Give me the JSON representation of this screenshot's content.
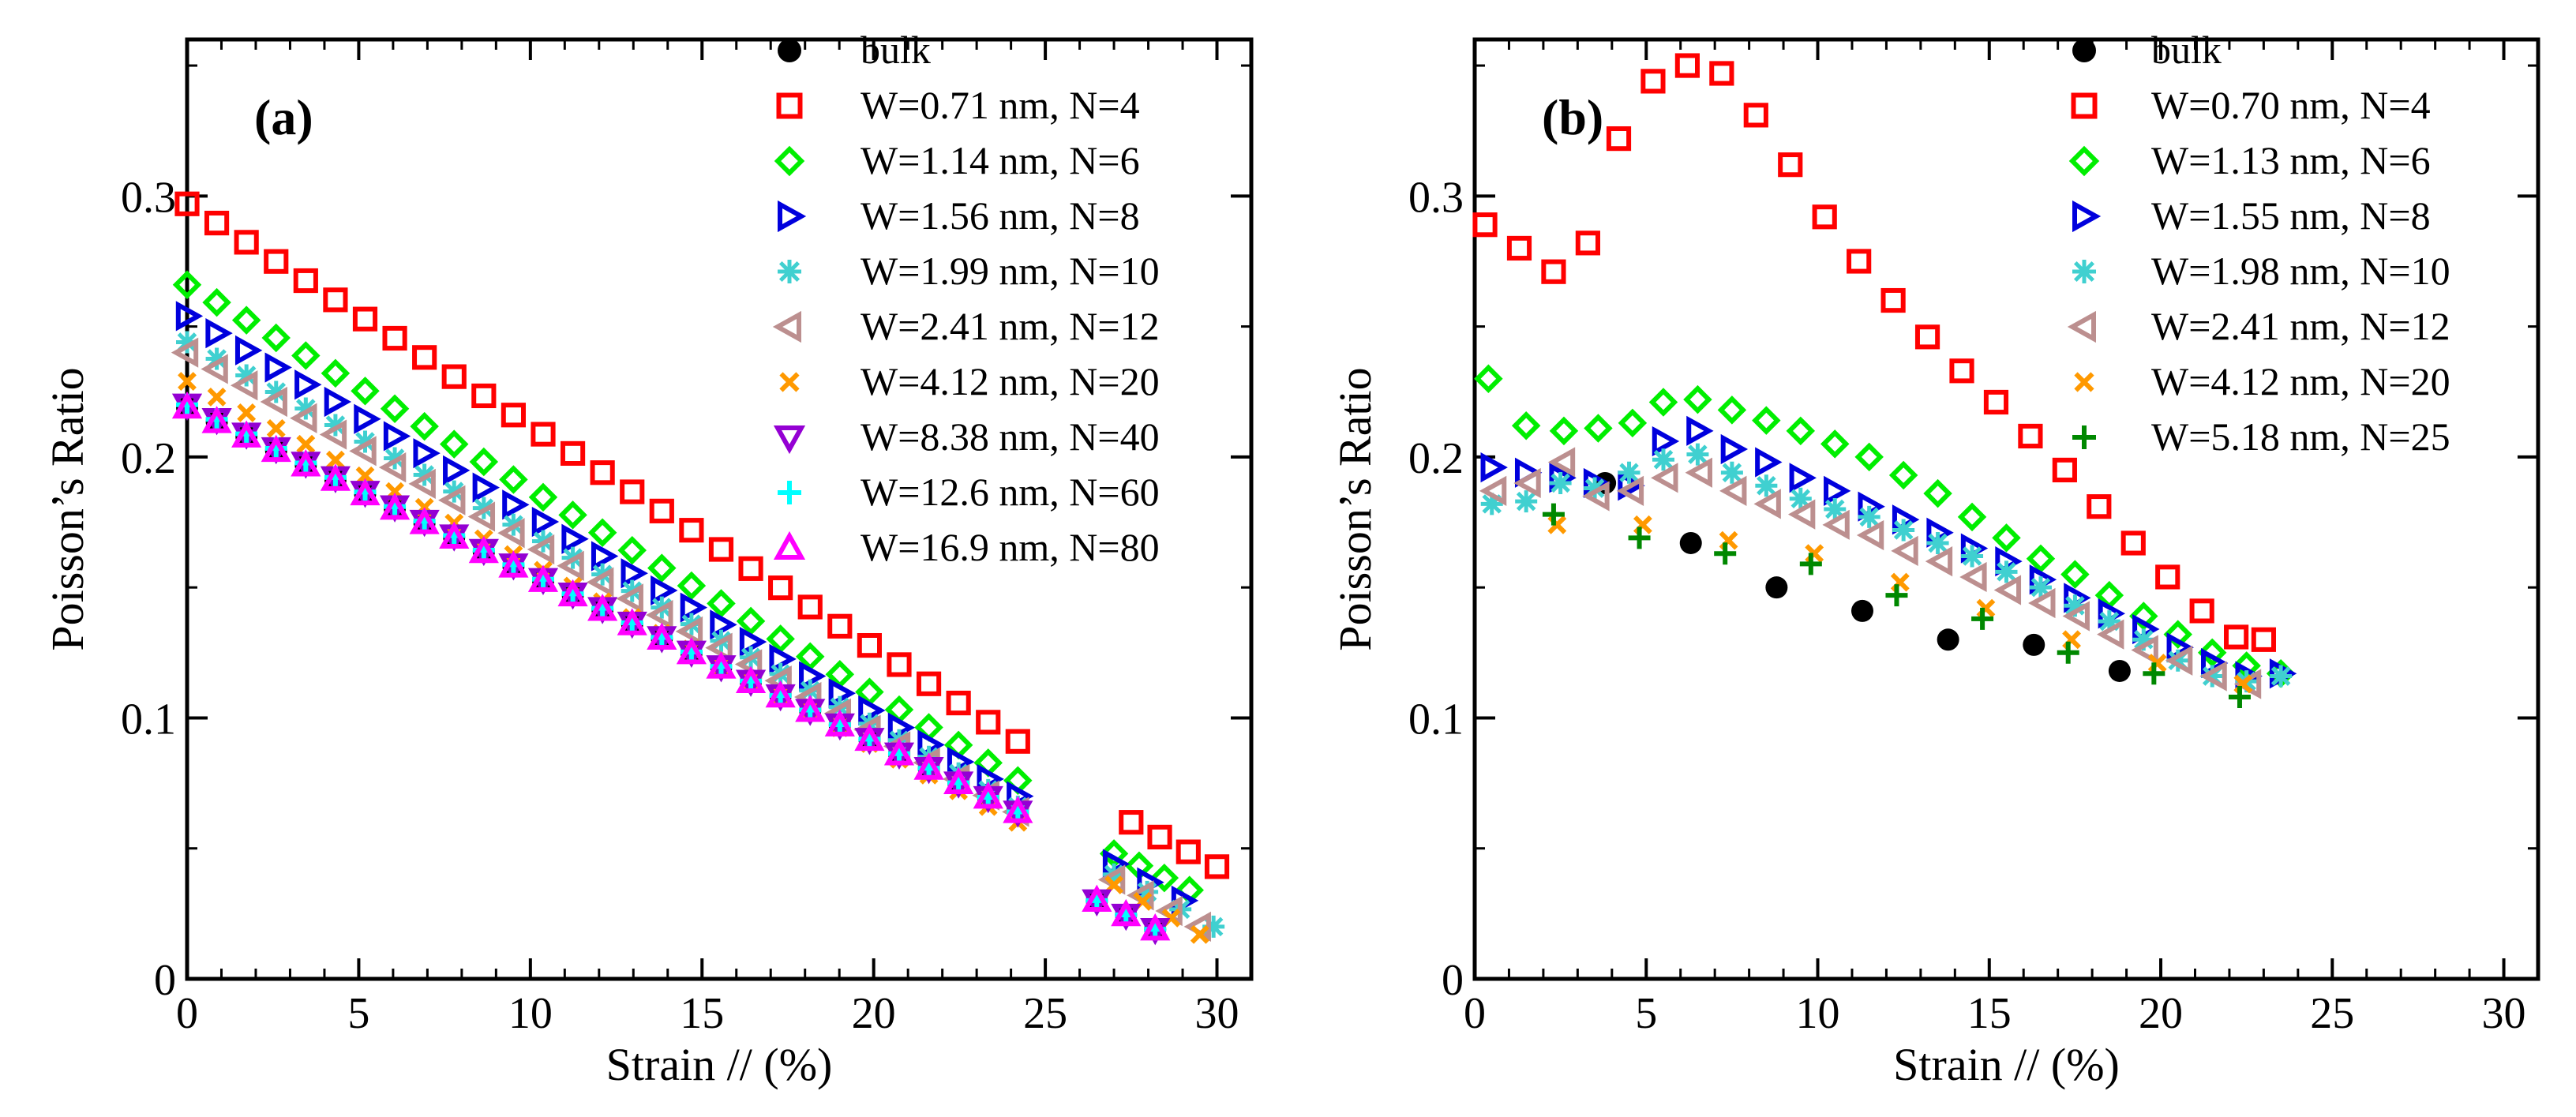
{
  "chart_data": [
    {
      "type": "scatter",
      "panel_label": "(a)",
      "xlabel": "Strain //  (%)",
      "ylabel": "Poisson’s Ratio",
      "xlim": [
        0,
        31
      ],
      "ylim": [
        0,
        0.36
      ],
      "xticks": [
        0,
        5,
        10,
        15,
        20,
        25,
        30
      ],
      "yticks": [
        0,
        0.1,
        0.2,
        0.3
      ],
      "xtick_labels": [
        "0",
        "5",
        "10",
        "15",
        "20",
        "25",
        "30"
      ],
      "ytick_labels": [
        "0",
        "0.1",
        "0.2",
        "0.3"
      ],
      "legend_position": "top-right",
      "series": [
        {
          "name": "bulk",
          "marker": "circle-filled",
          "color": "#000000",
          "segments": [
            [
              0,
              24.2,
              0.219,
              0.064
            ],
            [
              26.5,
              28.2,
              0.03,
              0.019
            ]
          ]
        },
        {
          "name": "W=0.71 nm, N=4",
          "marker": "square",
          "color": "#ff0000",
          "segments": [
            [
              0,
              24.2,
              0.297,
              0.091
            ],
            [
              27.5,
              30.0,
              0.06,
              0.043
            ]
          ]
        },
        {
          "name": "W=1.14 nm, N=6",
          "marker": "diamond",
          "color": "#00ee00",
          "segments": [
            [
              0,
              24.2,
              0.266,
              0.076
            ],
            [
              27,
              29.2,
              0.048,
              0.034
            ]
          ]
        },
        {
          "name": "W=1.56 nm, N=8",
          "marker": "triangle-right",
          "color": "#0000dd",
          "segments": [
            [
              0,
              24.2,
              0.254,
              0.07
            ],
            [
              27,
              29.0,
              0.044,
              0.03
            ]
          ]
        },
        {
          "name": "W=1.99 nm, N=10",
          "marker": "asterisk",
          "color": "#40d0d0",
          "segments": [
            [
              0,
              24.2,
              0.244,
              0.066
            ],
            [
              27,
              29.9,
              0.04,
              0.02
            ]
          ]
        },
        {
          "name": "W=2.41 nm, N=12",
          "marker": "triangle-left",
          "color": "#bc8f8f",
          "segments": [
            [
              0,
              24.2,
              0.24,
              0.064
            ],
            [
              27,
              29.5,
              0.038,
              0.02
            ]
          ]
        },
        {
          "name": "W=4.12 nm, N=20",
          "marker": "cross",
          "color": "#ff9900",
          "segments": [
            [
              0,
              24.2,
              0.229,
              0.06
            ],
            [
              27,
              29.5,
              0.036,
              0.017
            ]
          ]
        },
        {
          "name": "W=8.38 nm, N=40",
          "marker": "triangle-down",
          "color": "#9400d3",
          "segments": [
            [
              0,
              24.2,
              0.22,
              0.064
            ],
            [
              26.5,
              28.2,
              0.03,
              0.019
            ]
          ]
        },
        {
          "name": "W=12.6 nm, N=60",
          "marker": "plus",
          "color": "#00ffff",
          "segments": [
            [
              0,
              24.2,
              0.22,
              0.064
            ],
            [
              26.5,
              28.2,
              0.03,
              0.019
            ]
          ]
        },
        {
          "name": "W=16.9 nm, N=80",
          "marker": "triangle-up",
          "color": "#ff00ff",
          "segments": [
            [
              0,
              24.2,
              0.219,
              0.064
            ],
            [
              26.5,
              28.2,
              0.03,
              0.019
            ]
          ]
        }
      ]
    },
    {
      "type": "scatter",
      "panel_label": "(b)",
      "xlabel": "Strain //  (%)",
      "ylabel": "Poisson’s Ratio",
      "xlim": [
        0,
        31
      ],
      "ylim": [
        0,
        0.36
      ],
      "xticks": [
        0,
        5,
        10,
        15,
        20,
        25,
        30
      ],
      "yticks": [
        0,
        0.1,
        0.2,
        0.3
      ],
      "xtick_labels": [
        "0",
        "5",
        "10",
        "15",
        "20",
        "25",
        "30"
      ],
      "ytick_labels": [
        "0",
        "0.1",
        "0.2",
        "0.3"
      ],
      "legend_position": "top-right",
      "series": [
        {
          "name": "bulk",
          "marker": "circle-filled",
          "color": "#000000",
          "points": [
            [
              3.8,
              0.19
            ],
            [
              6.3,
              0.167
            ],
            [
              8.8,
              0.15
            ],
            [
              11.3,
              0.141
            ],
            [
              13.8,
              0.13
            ],
            [
              16.3,
              0.128
            ],
            [
              18.8,
              0.118
            ]
          ]
        },
        {
          "name": "W=0.70 nm, N=4",
          "marker": "square",
          "color": "#ff0000",
          "points": [
            [
              0.3,
              0.289
            ],
            [
              1.3,
              0.28
            ],
            [
              2.3,
              0.271
            ],
            [
              3.3,
              0.282
            ],
            [
              4.2,
              0.322
            ],
            [
              5.2,
              0.344
            ],
            [
              6.2,
              0.35
            ],
            [
              7.2,
              0.347
            ],
            [
              8.2,
              0.331
            ],
            [
              9.2,
              0.312
            ],
            [
              10.2,
              0.292
            ],
            [
              11.2,
              0.275
            ],
            [
              12.2,
              0.26
            ],
            [
              13.2,
              0.246
            ],
            [
              14.2,
              0.233
            ],
            [
              15.2,
              0.221
            ],
            [
              16.2,
              0.208
            ],
            [
              17.2,
              0.195
            ],
            [
              18.2,
              0.181
            ],
            [
              19.2,
              0.167
            ],
            [
              20.2,
              0.154
            ],
            [
              21.2,
              0.141
            ],
            [
              22.2,
              0.131
            ],
            [
              23.0,
              0.13
            ]
          ]
        },
        {
          "name": "W=1.13 nm, N=6",
          "marker": "diamond",
          "color": "#00ee00",
          "points": [
            [
              0.4,
              0.23
            ],
            [
              1.5,
              0.212
            ],
            [
              2.6,
              0.21
            ],
            [
              3.6,
              0.211
            ],
            [
              4.6,
              0.213
            ],
            [
              5.5,
              0.221
            ],
            [
              6.5,
              0.222
            ],
            [
              7.5,
              0.218
            ],
            [
              8.5,
              0.214
            ],
            [
              9.5,
              0.21
            ],
            [
              10.5,
              0.205
            ],
            [
              11.5,
              0.2
            ],
            [
              12.5,
              0.193
            ],
            [
              13.5,
              0.186
            ],
            [
              14.5,
              0.177
            ],
            [
              15.5,
              0.169
            ],
            [
              16.5,
              0.161
            ],
            [
              17.5,
              0.155
            ],
            [
              18.5,
              0.147
            ],
            [
              19.5,
              0.139
            ],
            [
              20.5,
              0.132
            ],
            [
              21.5,
              0.125
            ],
            [
              22.5,
              0.12
            ],
            [
              23.5,
              0.117
            ]
          ]
        },
        {
          "name": "W=1.55 nm, N=8",
          "marker": "triangle-right",
          "color": "#0000dd",
          "points": [
            [
              0.5,
              0.196
            ],
            [
              1.5,
              0.194
            ],
            [
              2.5,
              0.192
            ],
            [
              3.5,
              0.19
            ],
            [
              4.5,
              0.189
            ],
            [
              5.5,
              0.206
            ],
            [
              6.5,
              0.21
            ],
            [
              7.5,
              0.203
            ],
            [
              8.5,
              0.198
            ],
            [
              9.5,
              0.192
            ],
            [
              10.5,
              0.187
            ],
            [
              11.5,
              0.181
            ],
            [
              12.5,
              0.176
            ],
            [
              13.5,
              0.171
            ],
            [
              14.5,
              0.165
            ],
            [
              15.5,
              0.16
            ],
            [
              16.5,
              0.153
            ],
            [
              17.5,
              0.146
            ],
            [
              18.5,
              0.14
            ],
            [
              19.5,
              0.134
            ],
            [
              20.5,
              0.127
            ],
            [
              21.5,
              0.121
            ],
            [
              22.5,
              0.116
            ],
            [
              23.5,
              0.117
            ]
          ]
        },
        {
          "name": "W=1.98 nm, N=10",
          "marker": "asterisk",
          "color": "#40d0d0",
          "points": [
            [
              0.5,
              0.182
            ],
            [
              1.5,
              0.183
            ],
            [
              2.5,
              0.19
            ],
            [
              3.5,
              0.188
            ],
            [
              4.5,
              0.194
            ],
            [
              5.5,
              0.199
            ],
            [
              6.5,
              0.201
            ],
            [
              7.5,
              0.194
            ],
            [
              8.5,
              0.189
            ],
            [
              9.5,
              0.184
            ],
            [
              10.5,
              0.18
            ],
            [
              11.5,
              0.177
            ],
            [
              12.5,
              0.172
            ],
            [
              13.5,
              0.167
            ],
            [
              14.5,
              0.162
            ],
            [
              15.5,
              0.156
            ],
            [
              16.5,
              0.15
            ],
            [
              17.5,
              0.143
            ],
            [
              18.5,
              0.137
            ],
            [
              19.5,
              0.13
            ],
            [
              20.5,
              0.122
            ],
            [
              21.5,
              0.116
            ],
            [
              22.5,
              0.114
            ],
            [
              23.5,
              0.116
            ]
          ]
        },
        {
          "name": "W=2.41 nm, N=12",
          "marker": "triangle-left",
          "color": "#bc8f8f",
          "points": [
            [
              0.6,
              0.187
            ],
            [
              1.6,
              0.19
            ],
            [
              2.6,
              0.198
            ],
            [
              3.6,
              0.185
            ],
            [
              4.6,
              0.187
            ],
            [
              5.6,
              0.192
            ],
            [
              6.6,
              0.194
            ],
            [
              7.6,
              0.187
            ],
            [
              8.6,
              0.182
            ],
            [
              9.6,
              0.178
            ],
            [
              10.6,
              0.174
            ],
            [
              11.6,
              0.17
            ],
            [
              12.6,
              0.164
            ],
            [
              13.6,
              0.16
            ],
            [
              14.6,
              0.154
            ],
            [
              15.6,
              0.149
            ],
            [
              16.6,
              0.144
            ],
            [
              17.6,
              0.139
            ],
            [
              18.6,
              0.132
            ],
            [
              19.6,
              0.126
            ],
            [
              20.6,
              0.122
            ],
            [
              21.6,
              0.116
            ],
            [
              22.6,
              0.113
            ]
          ]
        },
        {
          "name": "W=4.12 nm, N=20",
          "marker": "cross",
          "color": "#ff9900",
          "points": [
            [
              2.4,
              0.174
            ],
            [
              4.9,
              0.174
            ],
            [
              7.4,
              0.168
            ],
            [
              9.9,
              0.163
            ],
            [
              12.4,
              0.152
            ],
            [
              14.9,
              0.142
            ],
            [
              17.4,
              0.13
            ],
            [
              19.9,
              0.121
            ],
            [
              22.4,
              0.113
            ]
          ]
        },
        {
          "name": "W=5.18 nm, N=25",
          "marker": "plus",
          "color": "#008800",
          "points": [
            [
              2.3,
              0.178
            ],
            [
              4.8,
              0.169
            ],
            [
              7.3,
              0.163
            ],
            [
              9.8,
              0.159
            ],
            [
              12.3,
              0.147
            ],
            [
              14.8,
              0.138
            ],
            [
              17.3,
              0.125
            ],
            [
              19.8,
              0.117
            ],
            [
              22.3,
              0.108
            ]
          ]
        }
      ]
    }
  ]
}
